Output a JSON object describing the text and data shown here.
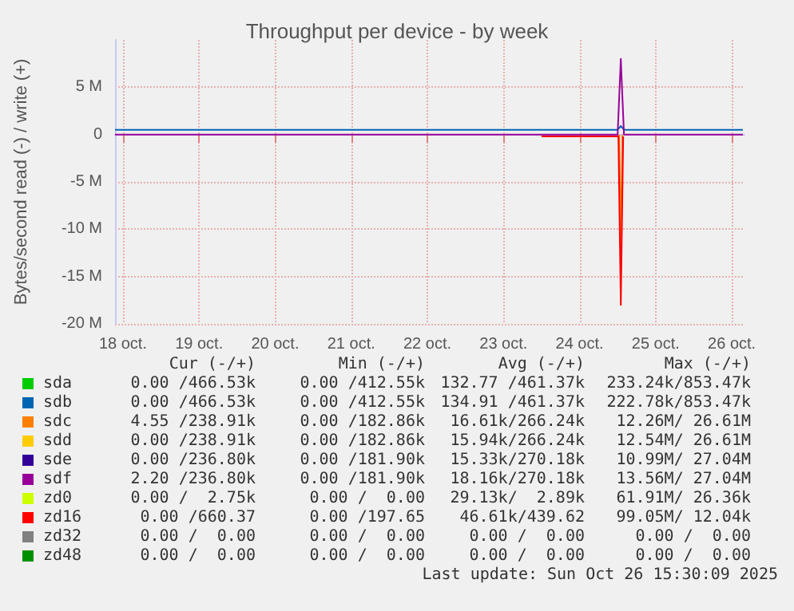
{
  "chart_data": {
    "type": "line",
    "title": "Throughput per device - by week",
    "ylabel": "Bytes/second read (-) / write (+)",
    "x": [
      "--10-18T09:30",
      "--10-19T00:00",
      "--10-20T00:00",
      "--10-21T00:00",
      "--10-22T00:00",
      "--10-23T00:00",
      "--10-24T00:00",
      "--10-25T00:00",
      "--10-25T01:00",
      "--10-25T02:00",
      "--10-26T00:00",
      "--10-26T15:30"
    ],
    "xlim": [
      "--10-18T09:30",
      "--10-26T16:00"
    ],
    "xticks": [
      {
        "value": "--10-18T12:00",
        "label": "18 oct."
      },
      {
        "value": "--10-19T12:00",
        "label": "19 oct."
      },
      {
        "value": "--10-20T12:00",
        "label": "20 oct."
      },
      {
        "value": "--10-21T12:00",
        "label": "21 oct."
      },
      {
        "value": "--10-22T12:00",
        "label": "22 oct."
      },
      {
        "value": "--10-23T12:00",
        "label": "23 oct."
      },
      {
        "value": "--10-24T12:00",
        "label": "24 oct."
      },
      {
        "value": "--10-25T12:00",
        "label": "25 oct."
      },
      {
        "value": "--10-26T12:00",
        "label": "26 oct."
      }
    ],
    "ylim": [
      -20000000,
      10000000
    ],
    "yticks": [
      {
        "value": -20000000,
        "label": "-20 M"
      },
      {
        "value": -15000000,
        "label": "-15 M"
      },
      {
        "value": -10000000,
        "label": "-10 M"
      },
      {
        "value": -5000000,
        "label": "-5 M"
      },
      0,
      {
        "value": 5000000,
        "label": "5 M"
      }
    ],
    "grid": true,
    "legend": "bottom",
    "marker": "none",
    "line_style": "solid",
    "series": [
      {
        "name": "sda",
        "color": "#00cc00",
        "values": [
          null,
          null,
          null,
          null,
          null,
          null,
          null,
          null,
          null,
          null,
          null,
          null
        ]
      },
      {
        "name": "sdb",
        "color": "#0066b3",
        "values": [
          500000,
          500000,
          500000,
          500000,
          500000,
          500000,
          500000,
          500000,
          900000,
          500000,
          500000,
          500000
        ]
      },
      {
        "name": "sdc",
        "color": "#ff8000",
        "x": [
          "--10-25T00:30",
          "--10-25T01:00",
          "--10-25T01:30"
        ],
        "values": [
          0,
          -12000000,
          0
        ]
      },
      {
        "name": "sdd",
        "color": "#ffcc00",
        "values": [
          null,
          null,
          null,
          null,
          null,
          null,
          null,
          null,
          null,
          null,
          null,
          null
        ]
      },
      {
        "name": "sde",
        "color": "#330099",
        "values": [
          null,
          null,
          null,
          null,
          null,
          null,
          null,
          null,
          null,
          null,
          null,
          null
        ]
      },
      {
        "name": "sdf",
        "color": "#990099",
        "values": [
          0,
          0,
          0,
          0,
          0,
          0,
          0,
          0,
          8000000,
          0,
          0,
          0
        ]
      },
      {
        "name": "zd0",
        "color": "#ccff00",
        "values": [
          null,
          null,
          null,
          null,
          null,
          null,
          null,
          null,
          null,
          null,
          null,
          null
        ]
      },
      {
        "name": "zd16",
        "color": "#ff0000",
        "x": [
          "--10-24T00:00",
          "--10-25T00:15",
          "--10-25T01:00",
          "--10-25T01:45"
        ],
        "values": [
          -200000,
          -200000,
          -18000000,
          -200000
        ]
      },
      {
        "name": "zd32",
        "color": "#808080",
        "values": [
          null,
          null,
          null,
          null,
          null,
          null,
          null,
          null,
          null,
          null,
          null,
          null
        ]
      },
      {
        "name": "zd48",
        "color": "#008f00",
        "values": [
          null,
          null,
          null,
          null,
          null,
          null,
          null,
          null,
          null,
          null,
          null,
          null
        ]
      }
    ],
    "annotations": [
      "Cur (-/+)",
      "Min (-/+)",
      "Avg (-/+)",
      "Max (-/+)",
      "0.00 /466.53k",
      "0.00 /412.55k",
      "132.77 /461.37k",
      "233.24k/853.47k",
      "0.00 /466.53k",
      "0.00 /412.55k",
      "134.91 /461.37k",
      "222.78k/853.47k",
      "4.55 /238.91k",
      "0.00 /182.86k",
      "16.61k/266.24k",
      "12.26M/ 26.61M",
      "0.00 /238.91k",
      "0.00 /182.86k",
      "15.94k/266.24k",
      "12.54M/ 26.61M",
      "0.00 /236.80k",
      "0.00 /181.90k",
      "15.33k/270.18k",
      "10.99M/ 27.04M",
      "2.20 /236.80k",
      "0.00 /181.90k",
      "18.16k/270.18k",
      "13.56M/ 27.04M",
      "0.00 /  2.75k",
      "0.00 /  0.00",
      "29.13k/  2.89k",
      "61.91M/ 26.36k",
      "0.00 /660.37",
      "0.00 /197.65",
      "46.61k/439.62",
      "99.05M/ 12.04k",
      "0.00 /  0.00",
      "0.00 /  0.00",
      "0.00 /  0.00",
      "0.00 /  0.00",
      "0.00 /  0.00",
      "0.00 /  0.00",
      "0.00 /  0.00",
      "0.00 /  0.00",
      "Last update: Sun Oct 26 15:30:09 2025"
    ]
  }
}
